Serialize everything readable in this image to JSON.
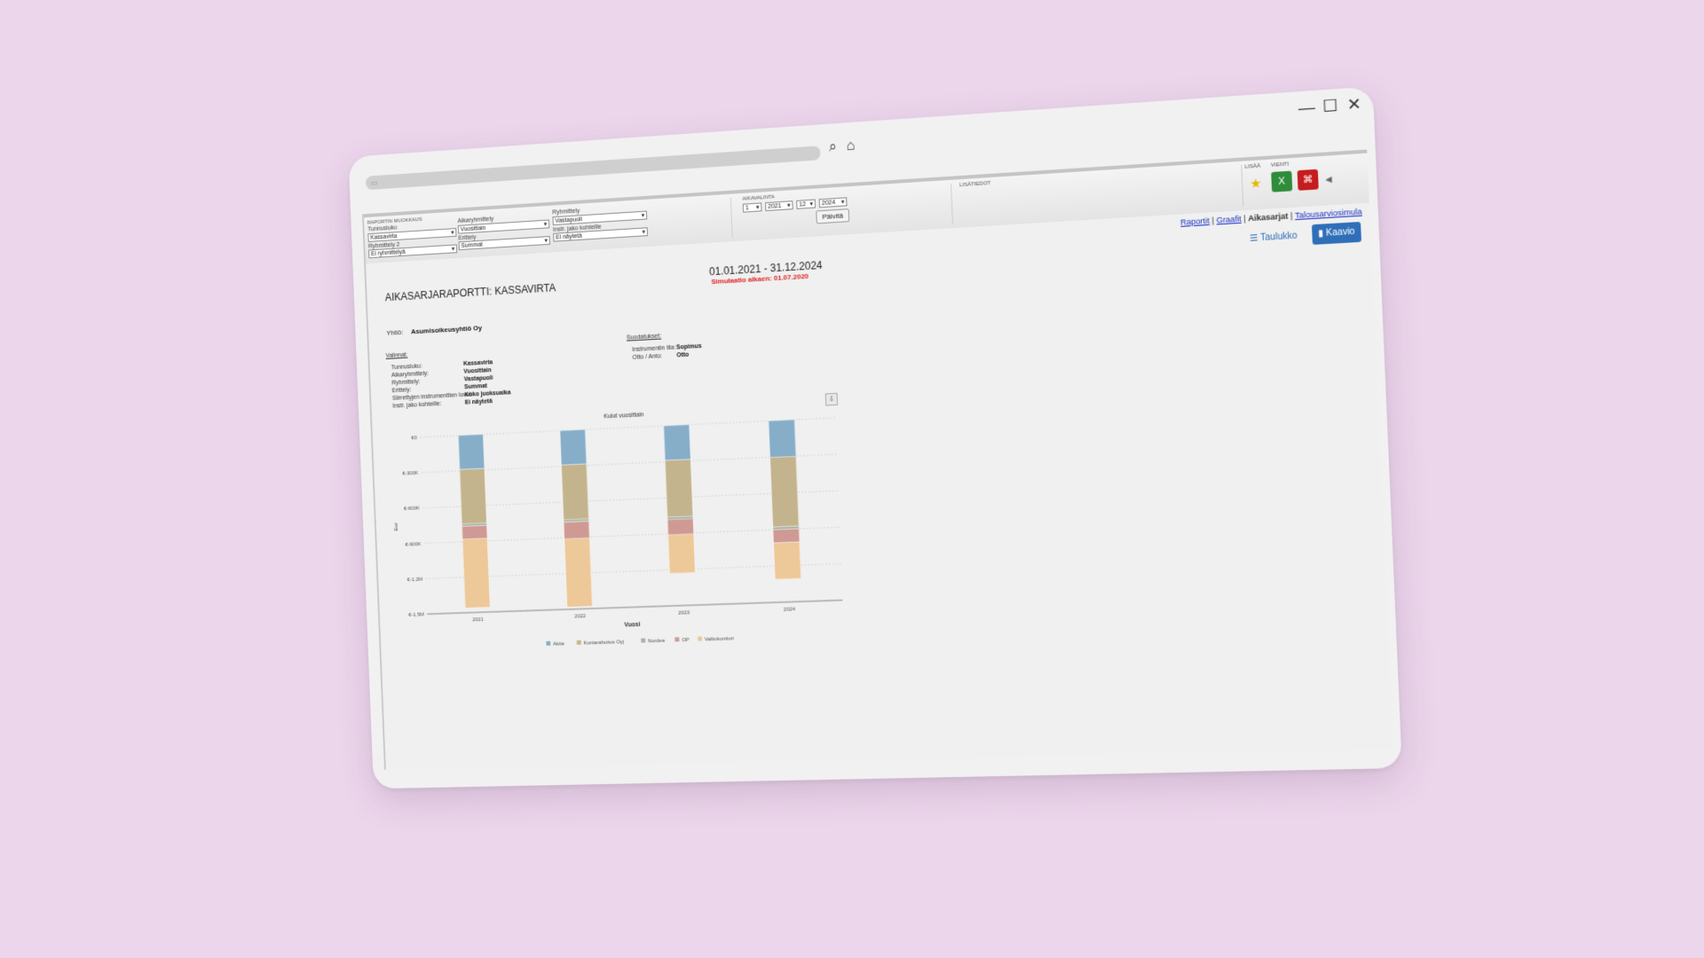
{
  "window": {
    "controls": {
      "minimize": "—",
      "maximize": "☐",
      "close": "✕"
    }
  },
  "browser": {
    "search_icon": "search-icon",
    "home_icon": "home-icon"
  },
  "toolbar": {
    "section_label": "RAPORTIN MUOKKAUS",
    "fields": {
      "tunnusluku": {
        "label": "Tunnusluku",
        "value": "Kassavirta"
      },
      "aikaryhmittely": {
        "label": "Aikaryhmittely",
        "value": "Vuosittain"
      },
      "ryhmittely": {
        "label": "Ryhmittely",
        "value": "Vastapuoli"
      },
      "ryhmittely2": {
        "label": "Ryhmittely 2",
        "value": "Ei ryhmittelyä"
      },
      "erittely": {
        "label": "Erittely",
        "value": "Summat"
      },
      "instr_jako": {
        "label": "Instr. jako kohteille",
        "value": "Ei näytetä"
      }
    },
    "aikavalinta": {
      "label": "AIKAVALINTA",
      "m1": "1",
      "y1": "2021",
      "m2": "12",
      "y2": "2024",
      "update": "Päivitä"
    },
    "lisatiedot_label": "LISÄTIEDOT",
    "lisaa_label": "LISÄÄ",
    "vienti_label": "VIENTI"
  },
  "nav": {
    "raportit": "Raportit",
    "graafit": "Graafit",
    "aikasarjat": "Aikasarjat",
    "talousarvio": "Talousarviosimula"
  },
  "view": {
    "table": "☰ Taulukko",
    "chart": "Kaavio"
  },
  "report": {
    "title": "AIKASARJARAPORTTI: KASSAVIRTA",
    "date_range": "01.01.2021 - 31.12.2024",
    "simulation_label": "Simulaatio alkaen:",
    "simulation_date": "01.07.2020",
    "company_label": "Yhtiö:",
    "company": "Asumisoikeusyhtiö Oy"
  },
  "valinnat": {
    "title": "Valinnat:",
    "items": [
      {
        "label": "Tunnusluku:",
        "value": "Kassavirta"
      },
      {
        "label": "Aikaryhmittely:",
        "value": "Vuosittain"
      },
      {
        "label": "Ryhmittely:",
        "value": "Vastapuoli"
      },
      {
        "label": "Erittely:",
        "value": "Summat"
      },
      {
        "label": "Siirrettyjen instrumenttien luvut:",
        "value": "Koko juoksuaika"
      },
      {
        "label": "Instr. jako kohteille:",
        "value": "Ei näytetä"
      }
    ]
  },
  "suodatukset": {
    "title": "Suodatukset:",
    "items": [
      {
        "label": "Instrumentin tila:",
        "value": "Sopimus"
      },
      {
        "label": "Otto / Anto:",
        "value": "Otto"
      }
    ]
  },
  "chart_data": {
    "type": "bar",
    "stacked": true,
    "title": "Kulut vuosittain",
    "xlabel": "Vuosi",
    "ylabel": "Eur",
    "ylim": [
      -1500000,
      0
    ],
    "yticks": [
      0,
      -300000,
      -600000,
      -900000,
      -1200000,
      -1500000
    ],
    "ytick_labels": [
      "€0",
      "€-300K",
      "€-600K",
      "€-900K",
      "€-1.2M",
      "€-1.5M"
    ],
    "categories": [
      "2021",
      "2022",
      "2023",
      "2024"
    ],
    "series": [
      {
        "name": "Aktia",
        "color": "#86aec9",
        "values": [
          -290000,
          -290000,
          -290000,
          -300000
        ]
      },
      {
        "name": "Kuntarahoitus Oyj",
        "color": "#c4b48e",
        "values": [
          -460000,
          -460000,
          -470000,
          -580000
        ]
      },
      {
        "name": "Nordea",
        "color": "#a4b3a6",
        "values": [
          -20000,
          -20000,
          -20000,
          -20000
        ]
      },
      {
        "name": "OP",
        "color": "#cf9a93",
        "values": [
          -110000,
          -140000,
          -130000,
          -110000
        ]
      },
      {
        "name": "Valtiokonttori",
        "color": "#edc898",
        "values": [
          -580000,
          -570000,
          -320000,
          -300000
        ]
      }
    ],
    "legend": "bottom"
  }
}
